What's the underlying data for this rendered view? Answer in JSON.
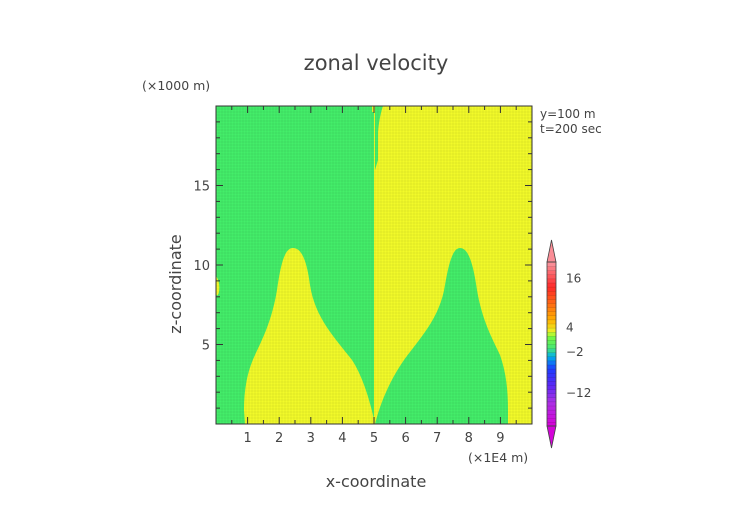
{
  "chart_data": {
    "type": "heatmap",
    "title": "zonal velocity",
    "xlabel": "x-coordinate",
    "ylabel": "z-coordinate",
    "x_unit": "(×1E4 m)",
    "y_unit": "(×1000 m)",
    "info": [
      "y=100  m",
      "t=200  sec"
    ],
    "xlim": [
      0,
      10
    ],
    "ylim": [
      0,
      20
    ],
    "x_ticks": [
      "1",
      "2",
      "3",
      "4",
      "5",
      "6",
      "7",
      "8",
      "9"
    ],
    "x_tick_values": [
      1,
      2,
      3,
      4,
      5,
      6,
      7,
      8,
      9
    ],
    "y_ticks": [
      "5",
      "10",
      "15"
    ],
    "y_tick_values": [
      5,
      10,
      15
    ],
    "colorbar": {
      "range": [
        -20,
        20
      ],
      "tick_labels": [
        "16",
        "4",
        "−2",
        "−12"
      ],
      "tick_values": [
        16,
        4,
        -2,
        -12
      ]
    },
    "regions": [
      {
        "name": "positive",
        "color": "#f2fa2a"
      },
      {
        "name": "near-zero",
        "color": "#44ee6a"
      }
    ]
  }
}
